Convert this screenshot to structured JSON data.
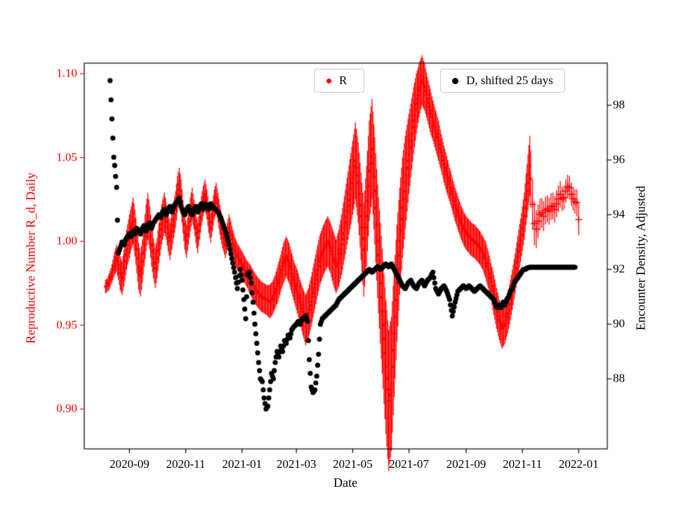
{
  "axes": {
    "x_label": "Date",
    "y_left_label": "Reproductive Number R_d, Daily",
    "y_right_label": "Encounter Density, Adjusted",
    "y_left_color": "#ff0000",
    "y_right_color": "#000000"
  },
  "legend": [
    {
      "label": "R",
      "color": "#ff0000",
      "marker": "circle"
    },
    {
      "label": "D, shifted 25 days",
      "color": "#000000",
      "marker": "circle"
    }
  ],
  "chart_data": {
    "type": "scatter",
    "title": "",
    "xlabel": "Date",
    "x_unit_note": "x values are days since 2020-08-01",
    "x_range": [
      -18,
      549
    ],
    "x_ticks": [
      31,
      92,
      153,
      212,
      273,
      334,
      396,
      457,
      518
    ],
    "x_tick_labels": [
      "2020-09",
      "2020-11",
      "2021-01",
      "2021-03",
      "2021-05",
      "2021-07",
      "2021-09",
      "2021-11",
      "2022-01"
    ],
    "left_axis": {
      "label": "Reproductive Number R_d, Daily",
      "color": "#ff0000",
      "ticks": [
        0.9,
        0.95,
        1.0,
        1.05,
        1.1
      ],
      "range": [
        0.8762,
        1.1063
      ]
    },
    "right_axis": {
      "label": "Encounter Density, Adjusted",
      "color": "#000000",
      "ticks": [
        88,
        90,
        92,
        94,
        96,
        98
      ],
      "range": [
        85.44,
        99.54
      ]
    },
    "grid": false,
    "legend_position": "upper center, two boxes inside axes",
    "series": [
      {
        "name": "R",
        "axis": "left",
        "color": "#ff0000",
        "marker": "point-with-errorbar",
        "plus_marker_from_x": 467,
        "x": [
          5,
          7,
          9,
          11,
          13,
          15,
          17,
          19,
          21,
          23,
          25,
          27,
          29,
          31,
          33,
          35,
          37,
          39,
          41,
          43,
          45,
          47,
          49,
          51,
          53,
          55,
          57,
          59,
          61,
          63,
          65,
          67,
          69,
          71,
          73,
          75,
          77,
          79,
          81,
          83,
          85,
          87,
          89,
          91,
          93,
          95,
          97,
          99,
          101,
          103,
          105,
          107,
          109,
          111,
          113,
          115,
          117,
          119,
          121,
          123,
          125,
          127,
          129,
          131,
          133,
          135,
          137,
          139,
          141,
          143,
          145,
          147,
          149,
          151,
          153,
          156,
          159,
          162,
          165,
          168,
          171,
          174,
          177,
          180,
          183,
          186,
          189,
          192,
          195,
          198,
          201,
          204,
          207,
          210,
          213,
          216,
          219,
          222,
          225,
          228,
          231,
          234,
          237,
          240,
          243,
          246,
          249,
          252,
          255,
          258,
          261,
          264,
          267,
          270,
          273,
          276,
          279,
          282,
          285,
          288,
          291,
          294,
          297,
          300,
          303,
          306,
          309,
          312,
          315,
          318,
          321,
          324,
          327,
          330,
          333,
          336,
          339,
          342,
          345,
          348,
          351,
          354,
          357,
          360,
          363,
          366,
          369,
          372,
          375,
          378,
          381,
          384,
          387,
          390,
          393,
          396,
          399,
          402,
          405,
          408,
          411,
          414,
          417,
          420,
          423,
          426,
          429,
          432,
          435,
          438,
          441,
          444,
          447,
          450,
          453,
          456,
          459,
          462,
          465,
          468,
          471,
          474,
          477,
          480,
          483,
          486,
          489,
          492,
          495,
          498,
          501,
          504,
          507,
          510,
          513,
          516,
          519
        ],
        "y": [
          0.973,
          0.974,
          0.976,
          0.979,
          0.983,
          0.987,
          0.99,
          0.986,
          0.981,
          0.978,
          0.984,
          0.992,
          0.998,
          1.003,
          1.008,
          1.012,
          1.005,
          0.995,
          0.985,
          0.98,
          0.988,
          0.998,
          1.008,
          1.015,
          1.008,
          0.998,
          0.99,
          0.984,
          0.99,
          0.999,
          1.007,
          1.013,
          1.017,
          1.012,
          1.005,
          1.0,
          1.006,
          1.013,
          1.019,
          1.028,
          1.034,
          1.027,
          1.015,
          1.005,
          1.0,
          1.008,
          1.016,
          1.022,
          1.016,
          1.008,
          1.002,
          1.01,
          1.018,
          1.024,
          1.028,
          1.022,
          1.014,
          1.008,
          1.015,
          1.022,
          1.026,
          1.02,
          1.013,
          1.007,
          1.002,
          0.998,
          1.003,
          1.008,
          1.004,
          0.999,
          0.995,
          0.992,
          0.99,
          0.988,
          0.986,
          0.983,
          0.98,
          0.977,
          0.974,
          0.971,
          0.969,
          0.967,
          0.966,
          0.965,
          0.964,
          0.966,
          0.97,
          0.975,
          0.981,
          0.987,
          0.991,
          0.987,
          0.981,
          0.975,
          0.97,
          0.964,
          0.958,
          0.953,
          0.957,
          0.964,
          0.972,
          0.98,
          0.988,
          0.993,
          0.997,
          1.0,
          0.996,
          0.99,
          0.985,
          0.99,
          0.998,
          1.008,
          1.018,
          1.028,
          1.038,
          1.048,
          1.035,
          1.015,
          0.995,
          1.015,
          1.042,
          1.055,
          1.03,
          1.0,
          0.975,
          0.95,
          0.925,
          0.905,
          0.915,
          0.945,
          0.975,
          1.0,
          1.02,
          1.035,
          1.048,
          1.06,
          1.072,
          1.082,
          1.09,
          1.096,
          1.092,
          1.085,
          1.078,
          1.072,
          1.066,
          1.06,
          1.053,
          1.046,
          1.04,
          1.034,
          1.028,
          1.022,
          1.017,
          1.012,
          1.008,
          1.005,
          1.003,
          1.001,
          1.0,
          0.998,
          0.996,
          0.993,
          0.989,
          0.983,
          0.976,
          0.968,
          0.96,
          0.953,
          0.948,
          0.951,
          0.957,
          0.965,
          0.974,
          0.984,
          0.994,
          1.004,
          1.015,
          1.03,
          1.045,
          1.022,
          1.005,
          1.012,
          1.018,
          1.015,
          1.02,
          1.018,
          1.022,
          1.019,
          1.024,
          1.028,
          1.024,
          1.03,
          1.034,
          1.028,
          1.024,
          1.023,
          1.008
        ],
        "yerr": [
          0.004,
          0.004,
          0.005,
          0.005,
          0.006,
          0.007,
          0.008,
          0.009,
          0.01,
          0.01,
          0.011,
          0.012,
          0.012,
          0.013,
          0.013,
          0.014,
          0.014,
          0.014,
          0.014,
          0.013,
          0.013,
          0.013,
          0.014,
          0.014,
          0.013,
          0.013,
          0.012,
          0.012,
          0.012,
          0.012,
          0.012,
          0.012,
          0.012,
          0.011,
          0.011,
          0.011,
          0.011,
          0.011,
          0.011,
          0.011,
          0.01,
          0.01,
          0.01,
          0.01,
          0.01,
          0.01,
          0.01,
          0.01,
          0.009,
          0.009,
          0.009,
          0.009,
          0.009,
          0.009,
          0.009,
          0.009,
          0.009,
          0.009,
          0.009,
          0.009,
          0.009,
          0.009,
          0.009,
          0.009,
          0.008,
          0.008,
          0.008,
          0.008,
          0.008,
          0.008,
          0.008,
          0.008,
          0.008,
          0.008,
          0.008,
          0.008,
          0.008,
          0.009,
          0.009,
          0.009,
          0.009,
          0.009,
          0.009,
          0.009,
          0.01,
          0.01,
          0.01,
          0.011,
          0.011,
          0.012,
          0.012,
          0.012,
          0.012,
          0.012,
          0.013,
          0.013,
          0.014,
          0.015,
          0.015,
          0.015,
          0.015,
          0.015,
          0.015,
          0.015,
          0.015,
          0.015,
          0.015,
          0.016,
          0.016,
          0.017,
          0.018,
          0.019,
          0.02,
          0.021,
          0.022,
          0.023,
          0.024,
          0.026,
          0.028,
          0.03,
          0.03,
          0.03,
          0.032,
          0.034,
          0.036,
          0.038,
          0.04,
          0.042,
          0.04,
          0.038,
          0.035,
          0.032,
          0.03,
          0.028,
          0.025,
          0.022,
          0.02,
          0.018,
          0.016,
          0.015,
          0.014,
          0.013,
          0.013,
          0.012,
          0.012,
          0.012,
          0.011,
          0.011,
          0.011,
          0.01,
          0.01,
          0.01,
          0.01,
          0.01,
          0.01,
          0.01,
          0.01,
          0.01,
          0.01,
          0.01,
          0.01,
          0.01,
          0.011,
          0.011,
          0.011,
          0.012,
          0.012,
          0.012,
          0.012,
          0.012,
          0.012,
          0.012,
          0.012,
          0.012,
          0.013,
          0.013,
          0.014,
          0.016,
          0.018,
          0.015,
          0.012,
          0.01,
          0.009,
          0.009,
          0.008,
          0.008,
          0.008,
          0.008,
          0.008,
          0.008,
          0.007,
          0.007,
          0.007,
          0.007,
          0.007,
          0.008,
          0.01
        ]
      },
      {
        "name": "D, shifted 25 days",
        "axis": "right",
        "color": "#000000",
        "marker": "point",
        "x": [
          10,
          12,
          14,
          15,
          17,
          19,
          21,
          23,
          25,
          27,
          29,
          31,
          33,
          35,
          37,
          39,
          41,
          43,
          45,
          47,
          49,
          51,
          53,
          55,
          57,
          59,
          61,
          63,
          65,
          67,
          69,
          71,
          73,
          75,
          77,
          79,
          81,
          83,
          85,
          87,
          89,
          91,
          93,
          95,
          97,
          99,
          101,
          103,
          105,
          107,
          109,
          111,
          113,
          115,
          117,
          119,
          121,
          124,
          127,
          130,
          133,
          136,
          139,
          142,
          145,
          148,
          151,
          153,
          155,
          157,
          159,
          161,
          163,
          165,
          167,
          169,
          171,
          173,
          175,
          177,
          179,
          181,
          183,
          185,
          187,
          189,
          191,
          193,
          195,
          197,
          199,
          201,
          203,
          205,
          207,
          209,
          212,
          214,
          216,
          218,
          220,
          222,
          224,
          226,
          228,
          230,
          232,
          234,
          236,
          238,
          240,
          243,
          246,
          249,
          252,
          255,
          258,
          261,
          264,
          267,
          270,
          273,
          276,
          279,
          282,
          285,
          288,
          291,
          294,
          297,
          300,
          303,
          306,
          309,
          312,
          315,
          318,
          321,
          324,
          327,
          330,
          333,
          336,
          339,
          342,
          345,
          348,
          351,
          354,
          357,
          360,
          363,
          366,
          369,
          372,
          375,
          378,
          381,
          384,
          387,
          390,
          393,
          396,
          399,
          402,
          405,
          408,
          411,
          414,
          417,
          420,
          423,
          426,
          428,
          430,
          432,
          434,
          436,
          438,
          440,
          442,
          444,
          446,
          448,
          450,
          452,
          454,
          456,
          458,
          460,
          462,
          465,
          470,
          475,
          480,
          485,
          490,
          495,
          500,
          505,
          510,
          514
        ],
        "y": [
          98.9,
          97.5,
          96.1,
          95.8,
          95.0,
          92.6,
          92.8,
          93.0,
          92.9,
          93.1,
          93.2,
          93.3,
          93.2,
          93.4,
          93.3,
          93.5,
          93.4,
          93.3,
          93.5,
          93.6,
          93.4,
          93.6,
          93.7,
          93.5,
          93.7,
          93.8,
          93.9,
          94.0,
          93.9,
          94.1,
          94.2,
          94.0,
          94.2,
          94.3,
          94.1,
          94.3,
          94.4,
          94.5,
          94.6,
          94.3,
          94.1,
          94.0,
          94.2,
          94.3,
          94.1,
          94.0,
          94.2,
          94.3,
          94.1,
          94.3,
          94.4,
          94.2,
          94.4,
          94.3,
          94.2,
          94.4,
          94.3,
          94.2,
          94.1,
          93.9,
          93.6,
          93.3,
          92.9,
          92.4,
          91.9,
          91.3,
          92.0,
          91.6,
          90.9,
          90.2,
          91.8,
          91.9,
          91.5,
          90.8,
          90.0,
          89.3,
          88.6,
          88.0,
          87.9,
          87.3,
          86.9,
          87.0,
          87.6,
          88.2,
          88.0,
          88.6,
          89.0,
          88.8,
          89.2,
          89.0,
          89.4,
          89.3,
          89.6,
          89.5,
          89.8,
          89.9,
          90.0,
          90.1,
          90.0,
          90.2,
          90.2,
          90.3,
          90.1,
          88.7,
          87.7,
          87.5,
          87.6,
          88.1,
          88.9,
          90.0,
          90.2,
          90.3,
          90.4,
          90.5,
          90.6,
          90.7,
          90.9,
          91.0,
          91.1,
          91.2,
          91.3,
          91.4,
          91.5,
          91.6,
          91.7,
          91.8,
          91.9,
          92.0,
          91.9,
          92.0,
          92.1,
          92.0,
          92.1,
          92.2,
          92.1,
          92.2,
          92.0,
          91.8,
          91.6,
          91.4,
          91.3,
          91.5,
          91.6,
          91.4,
          91.3,
          91.5,
          91.6,
          91.4,
          91.6,
          91.7,
          91.9,
          91.3,
          91.1,
          91.3,
          91.4,
          91.2,
          90.9,
          90.3,
          90.8,
          91.2,
          91.3,
          91.4,
          91.3,
          91.4,
          91.3,
          91.2,
          91.3,
          91.4,
          91.3,
          91.2,
          91.1,
          91.0,
          90.9,
          90.7,
          90.6,
          90.7,
          90.6,
          90.8,
          90.7,
          90.9,
          91.0,
          91.2,
          91.3,
          91.5,
          91.6,
          91.7,
          91.8,
          91.9,
          92.0,
          92.0,
          92.05,
          92.08,
          92.08,
          92.08,
          92.08,
          92.08,
          92.08,
          92.08,
          92.08,
          92.08,
          92.08,
          92.08
        ]
      }
    ]
  }
}
